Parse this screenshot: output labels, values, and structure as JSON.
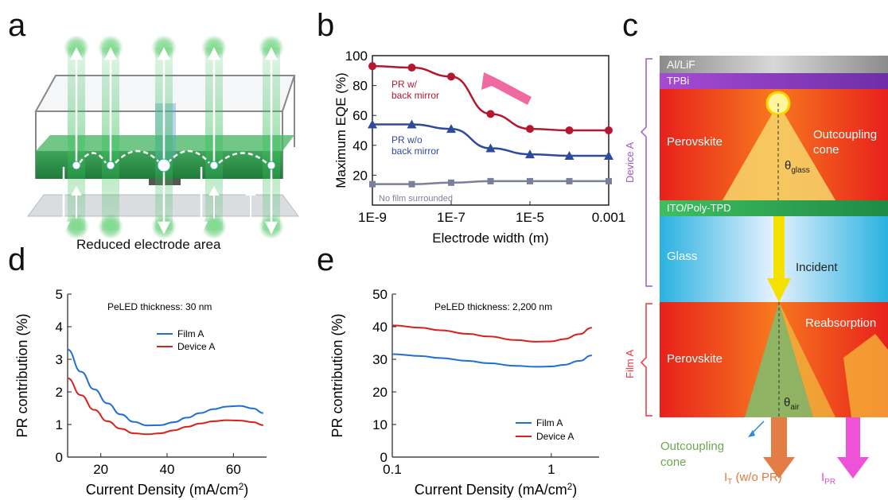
{
  "panel_letters": {
    "a": "a",
    "b": "b",
    "c": "c",
    "d": "d",
    "e": "e"
  },
  "panel_a": {
    "caption": "Reduced electrode area"
  },
  "panel_c": {
    "layers": [
      {
        "label": "Al/LiF",
        "color": "#bdbdbd"
      },
      {
        "label": "TPBi",
        "color": "#8e3fb8"
      },
      {
        "label": "Perovskite",
        "color": "#f04b1e"
      },
      {
        "label": "ITO/Poly-TPD",
        "color": "#2fa84f"
      },
      {
        "label": "Glass",
        "color": "#2ab4d8"
      },
      {
        "label": "Perovskite",
        "color": "#f04b1e"
      }
    ],
    "outcoupling_top": "Outcoupling\ncone",
    "theta_glass": "θ",
    "theta_glass_sub": "glass",
    "incident": "Incident",
    "reabsorption": "Reabsorption",
    "theta_air": "θ",
    "theta_air_sub": "air",
    "outcoupling_bottom": "Outcoupling\ncone",
    "it_label": "I",
    "it_sub": "T",
    "it_tail": " (w/o PR)",
    "ipr_label": "I",
    "ipr_sub": "PR",
    "device_label": "Device A",
    "film_label": "Film A",
    "colors": {
      "device": "#9b59c9",
      "film": "#e8373c",
      "outcoupling_text": "#6aa84f",
      "it": "#e07a3c",
      "ipr": "#e84ecf"
    }
  },
  "chart_data": [
    {
      "id": "b",
      "type": "line",
      "xlabel": "Electrode width (m)",
      "ylabel": "Maximum EQE (%)",
      "xscale": "log",
      "xlim": [
        1e-09,
        0.001
      ],
      "ylim": [
        0,
        100
      ],
      "xticks": [
        "1E-9",
        "1E-7",
        "1E-5",
        "0.001"
      ],
      "yticks": [
        20,
        40,
        60,
        80,
        100
      ],
      "series": [
        {
          "name": "PR w/\nback mirror",
          "color": "#b5172e",
          "marker": "circle",
          "x": [
            1e-09,
            1e-08,
            1e-07,
            1e-06,
            1e-05,
            0.0001,
            0.001
          ],
          "y": [
            93,
            92,
            86,
            61,
            51,
            50,
            50
          ]
        },
        {
          "name": "PR w/o\nback mirror",
          "color": "#2e4a9e",
          "marker": "triangle",
          "x": [
            1e-09,
            1e-08,
            1e-07,
            1e-06,
            1e-05,
            0.0001,
            0.001
          ],
          "y": [
            54,
            54,
            51,
            38,
            34,
            33,
            33
          ]
        },
        {
          "name": "No film surrounded",
          "color": "#7a7f9a",
          "marker": "square",
          "x": [
            1e-09,
            1e-08,
            1e-07,
            1e-06,
            1e-05,
            0.0001,
            0.001
          ],
          "y": [
            14,
            14,
            15,
            16,
            16,
            16,
            16
          ]
        }
      ]
    },
    {
      "id": "d",
      "type": "line",
      "title": "PeLED thickness: 30 nm",
      "xlabel": "Current Density (mA/cm",
      "xlabel_sup": "2",
      "xlabel_tail": ")",
      "ylabel": "PR contribution (%)",
      "xlim": [
        10,
        70
      ],
      "ylim": [
        0,
        5
      ],
      "xticks": [
        20,
        40,
        60
      ],
      "yticks": [
        0,
        1,
        2,
        3,
        4,
        5
      ],
      "series": [
        {
          "name": "Film A",
          "color": "#1f6fd1",
          "x": [
            10,
            14,
            18,
            22,
            26,
            30,
            34,
            38,
            42,
            46,
            50,
            54,
            58,
            62,
            66,
            69
          ],
          "y": [
            3.3,
            2.62,
            2.08,
            1.65,
            1.31,
            1.08,
            0.97,
            0.98,
            1.07,
            1.21,
            1.35,
            1.47,
            1.55,
            1.57,
            1.49,
            1.35
          ]
        },
        {
          "name": "Device A",
          "color": "#d9201c",
          "x": [
            10,
            14,
            18,
            22,
            26,
            30,
            34,
            38,
            42,
            46,
            50,
            54,
            58,
            62,
            66,
            69
          ],
          "y": [
            2.42,
            1.9,
            1.45,
            1.1,
            0.87,
            0.73,
            0.7,
            0.73,
            0.82,
            0.93,
            1.03,
            1.1,
            1.13,
            1.12,
            1.07,
            0.98
          ]
        }
      ]
    },
    {
      "id": "e",
      "type": "line",
      "title": "PeLED thickness: 2,200 nm",
      "xlabel": "Current Density (mA/cm",
      "xlabel_sup": "2",
      "xlabel_tail": ")",
      "ylabel": "PR contribution (%)",
      "xscale": "log",
      "xlim": [
        0.1,
        2
      ],
      "ylim": [
        0,
        50
      ],
      "xticks": [
        "0.1",
        "1"
      ],
      "yticks": [
        0,
        10,
        20,
        30,
        40,
        50
      ],
      "series": [
        {
          "name": "Film A",
          "color": "#1f6fd1",
          "x": [
            0.1,
            0.15,
            0.2,
            0.3,
            0.4,
            0.6,
            0.8,
            1.0,
            1.2,
            1.5,
            1.8
          ],
          "y": [
            31.6,
            31.0,
            30.4,
            29.5,
            28.8,
            28.0,
            27.7,
            27.8,
            28.3,
            29.5,
            31.2
          ]
        },
        {
          "name": "Device A",
          "color": "#d9201c",
          "x": [
            0.1,
            0.15,
            0.2,
            0.3,
            0.4,
            0.6,
            0.8,
            1.0,
            1.2,
            1.5,
            1.8
          ],
          "y": [
            40.4,
            39.7,
            38.9,
            37.8,
            37.0,
            35.9,
            35.4,
            35.5,
            36.2,
            37.7,
            39.7
          ]
        }
      ]
    }
  ]
}
